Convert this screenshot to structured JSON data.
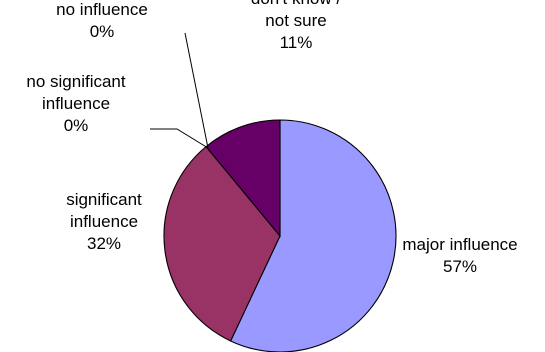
{
  "chart_data": {
    "type": "pie",
    "title": "",
    "legend": "none",
    "slices": [
      {
        "key": "major",
        "label_lines": [
          "major influence"
        ],
        "value_label": "57%",
        "value": 57,
        "color": "#9999ff"
      },
      {
        "key": "significant",
        "label_lines": [
          "significant",
          "influence"
        ],
        "value_label": "32%",
        "value": 32,
        "color": "#993366"
      },
      {
        "key": "no-influence",
        "label_lines": [
          "no influence"
        ],
        "value_label": "0%",
        "value": 0,
        "color": "#ffffcc"
      },
      {
        "key": "no-significant",
        "label_lines": [
          "no significant",
          "influence"
        ],
        "value_label": "0%",
        "value": 0,
        "color": "#ccffff"
      },
      {
        "key": "dont-know",
        "label_lines": [
          "don't know /",
          "not sure"
        ],
        "value_label": "11%",
        "value": 11,
        "color": "#660066"
      }
    ]
  }
}
